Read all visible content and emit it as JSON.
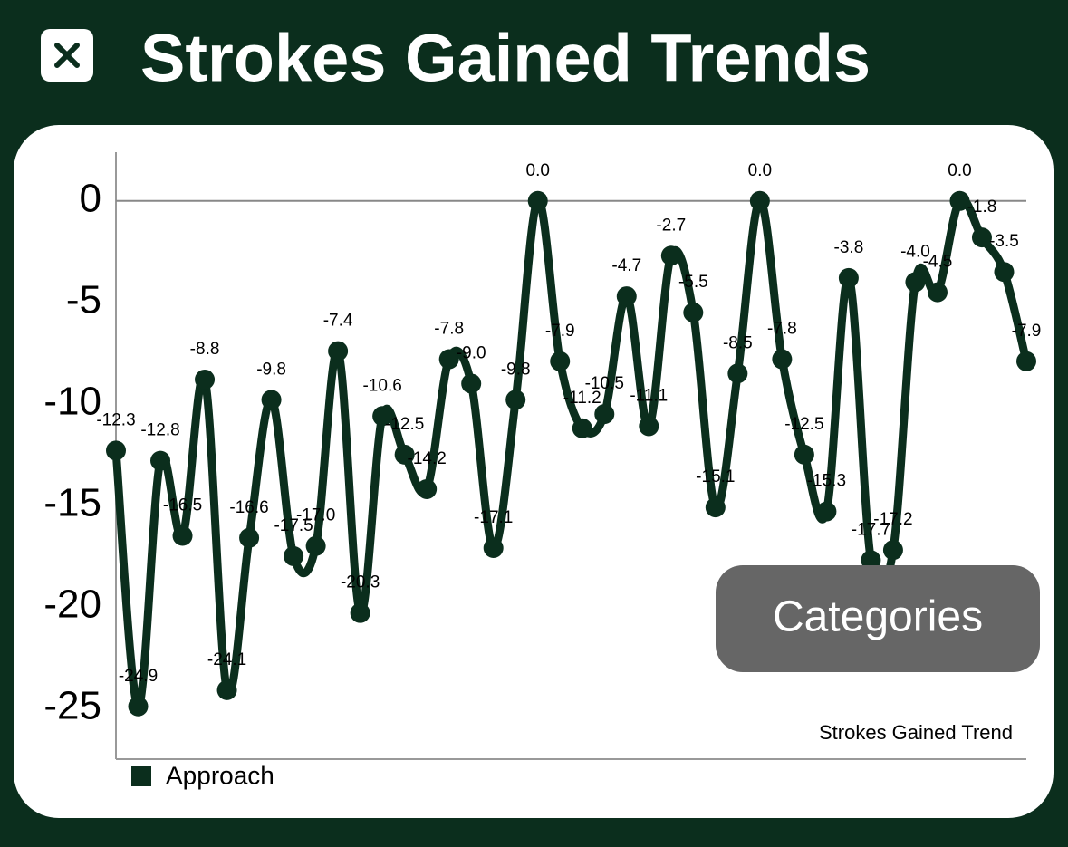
{
  "header": {
    "title": "Strokes Gained Trends"
  },
  "button": "Categories",
  "chart_data": {
    "type": "line",
    "annotation": "Strokes Gained Trend",
    "series": [
      {
        "name": "Approach",
        "color": "#0b2e1d",
        "values": [
          -12.3,
          -24.9,
          -12.8,
          -16.5,
          -8.8,
          -24.1,
          -16.6,
          -9.8,
          -17.5,
          -17.0,
          -7.4,
          -20.3,
          -10.6,
          -12.5,
          -14.2,
          -7.8,
          -9.0,
          -17.1,
          -9.8,
          0.0,
          -7.9,
          -11.2,
          -10.5,
          -4.7,
          -11.1,
          -2.7,
          -5.5,
          -15.1,
          -8.5,
          0.0,
          -7.8,
          -12.5,
          -15.3,
          -3.8,
          -17.7,
          -17.2,
          -4.0,
          -4.5,
          0.0,
          -1.8,
          -3.5,
          -7.9
        ],
        "value_labels": [
          "-12.3",
          "-24.9",
          "-12.8",
          "-16.5",
          "-8.8",
          "-24.1",
          "-16.6",
          "-9.8",
          "-17.5",
          "-17.0",
          "-7.4",
          "-20.3",
          "-10.6",
          "-12.5",
          "-14.2",
          "-7.8",
          "-9.0",
          "-17.1",
          "-9.8",
          "0.0",
          "-7.9",
          "-11.2",
          "-10.5",
          "-4.7",
          "-11.1",
          "-2.7",
          "-5.5",
          "-15.1",
          "-8.5",
          "0.0",
          "-7.8",
          "-12.5",
          "-15.3",
          "-3.8",
          "-17.7",
          "-17.2",
          "-4.0",
          "-4.5",
          "0.0",
          "-1.8",
          "-3.5",
          "-7.9"
        ]
      }
    ],
    "ylim": [
      -27.5,
      2.4
    ],
    "yticks": [
      0,
      -5,
      -10,
      -15,
      -20,
      -25
    ],
    "grid": false,
    "legend": "bottom-left"
  }
}
